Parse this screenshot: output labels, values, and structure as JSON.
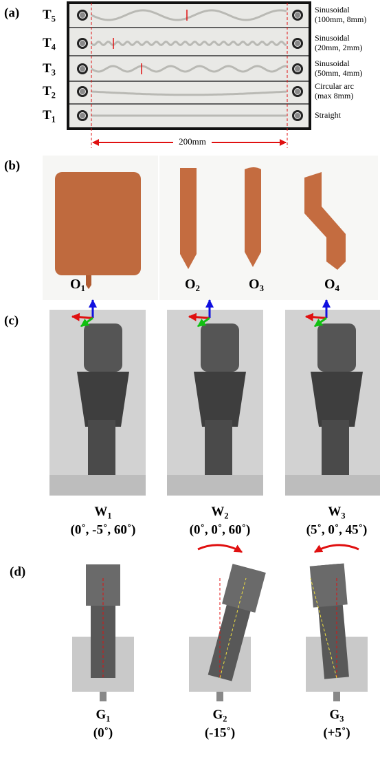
{
  "panel_a": {
    "label": "(a)",
    "dimension": "200mm",
    "tracks": [
      {
        "name": "T",
        "sub": "5",
        "description": [
          "Sinusoidal",
          "(100mm, 8mm)"
        ]
      },
      {
        "name": "T",
        "sub": "4",
        "description": [
          "Sinusoidal",
          "(20mm, 2mm)"
        ]
      },
      {
        "name": "T",
        "sub": "3",
        "description": [
          "Sinusoidal",
          "(50mm, 4mm)"
        ]
      },
      {
        "name": "T",
        "sub": "2",
        "description": [
          "Circular arc",
          "(max 8mm)"
        ]
      },
      {
        "name": "T",
        "sub": "1",
        "description": [
          "Straight"
        ]
      }
    ]
  },
  "panel_b": {
    "label": "(b)",
    "objects": [
      {
        "name": "O",
        "sub": "1"
      },
      {
        "name": "O",
        "sub": "2"
      },
      {
        "name": "O",
        "sub": "3"
      },
      {
        "name": "O",
        "sub": "4"
      }
    ]
  },
  "panel_c": {
    "label": "(c)",
    "poses": [
      {
        "name": "W",
        "sub": "1",
        "angles": "(0˚, -5˚, 60˚)"
      },
      {
        "name": "W",
        "sub": "2",
        "angles": "(0˚, 0˚, 60˚)"
      },
      {
        "name": "W",
        "sub": "3",
        "angles": "(5˚, 0˚, 45˚)"
      }
    ]
  },
  "panel_d": {
    "label": "(d)",
    "grasps": [
      {
        "name": "G",
        "sub": "1",
        "angle": "(0˚)"
      },
      {
        "name": "G",
        "sub": "2",
        "angle": "(-15˚)"
      },
      {
        "name": "G",
        "sub": "3",
        "angle": "(+5˚)"
      }
    ]
  }
}
